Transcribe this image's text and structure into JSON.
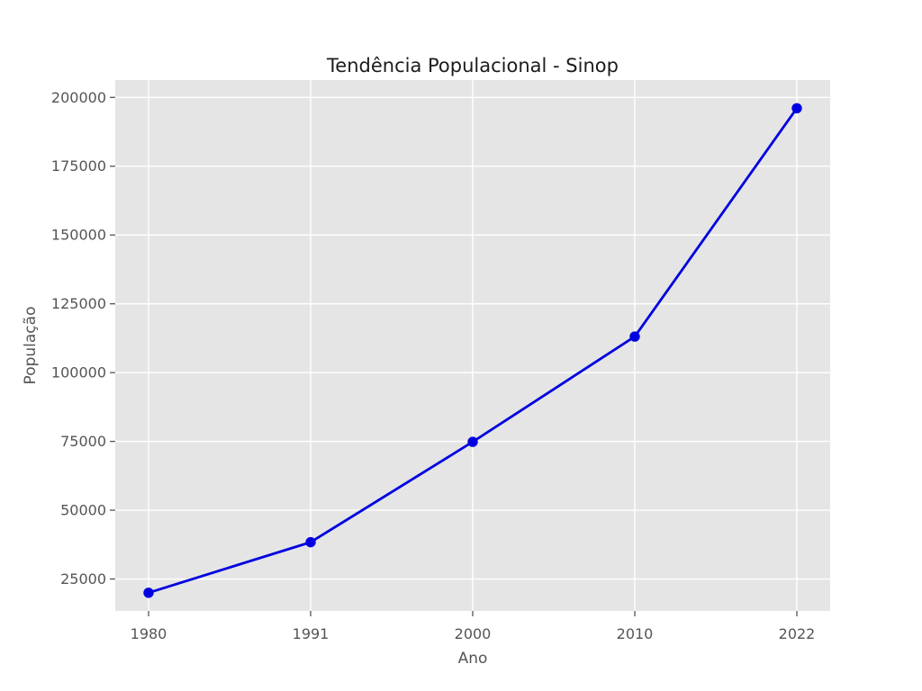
{
  "chart_data": {
    "type": "line",
    "title": "Tendência Populacional - Sinop",
    "xlabel": "Ano",
    "ylabel": "População",
    "x": [
      1980,
      1991,
      2000,
      2010,
      2022
    ],
    "series": [
      {
        "name": "População",
        "values": [
          20000,
          38374,
          74831,
          113099,
          196067
        ]
      }
    ],
    "yticks": [
      25000,
      50000,
      75000,
      100000,
      125000,
      150000,
      175000,
      200000
    ],
    "ylim": [
      13400,
      206300
    ],
    "grid": true,
    "legend_position": "none",
    "line_color": "#0000e0",
    "marker": "circle",
    "colors": {
      "figure_background": "#ffffff",
      "plot_background": "#e5e5e5",
      "grid_color": "#ffffff",
      "tick_color": "#555555",
      "tick_label_color": "#555555",
      "axis_label_color": "#555555",
      "title_color": "#1c1c1c"
    }
  }
}
